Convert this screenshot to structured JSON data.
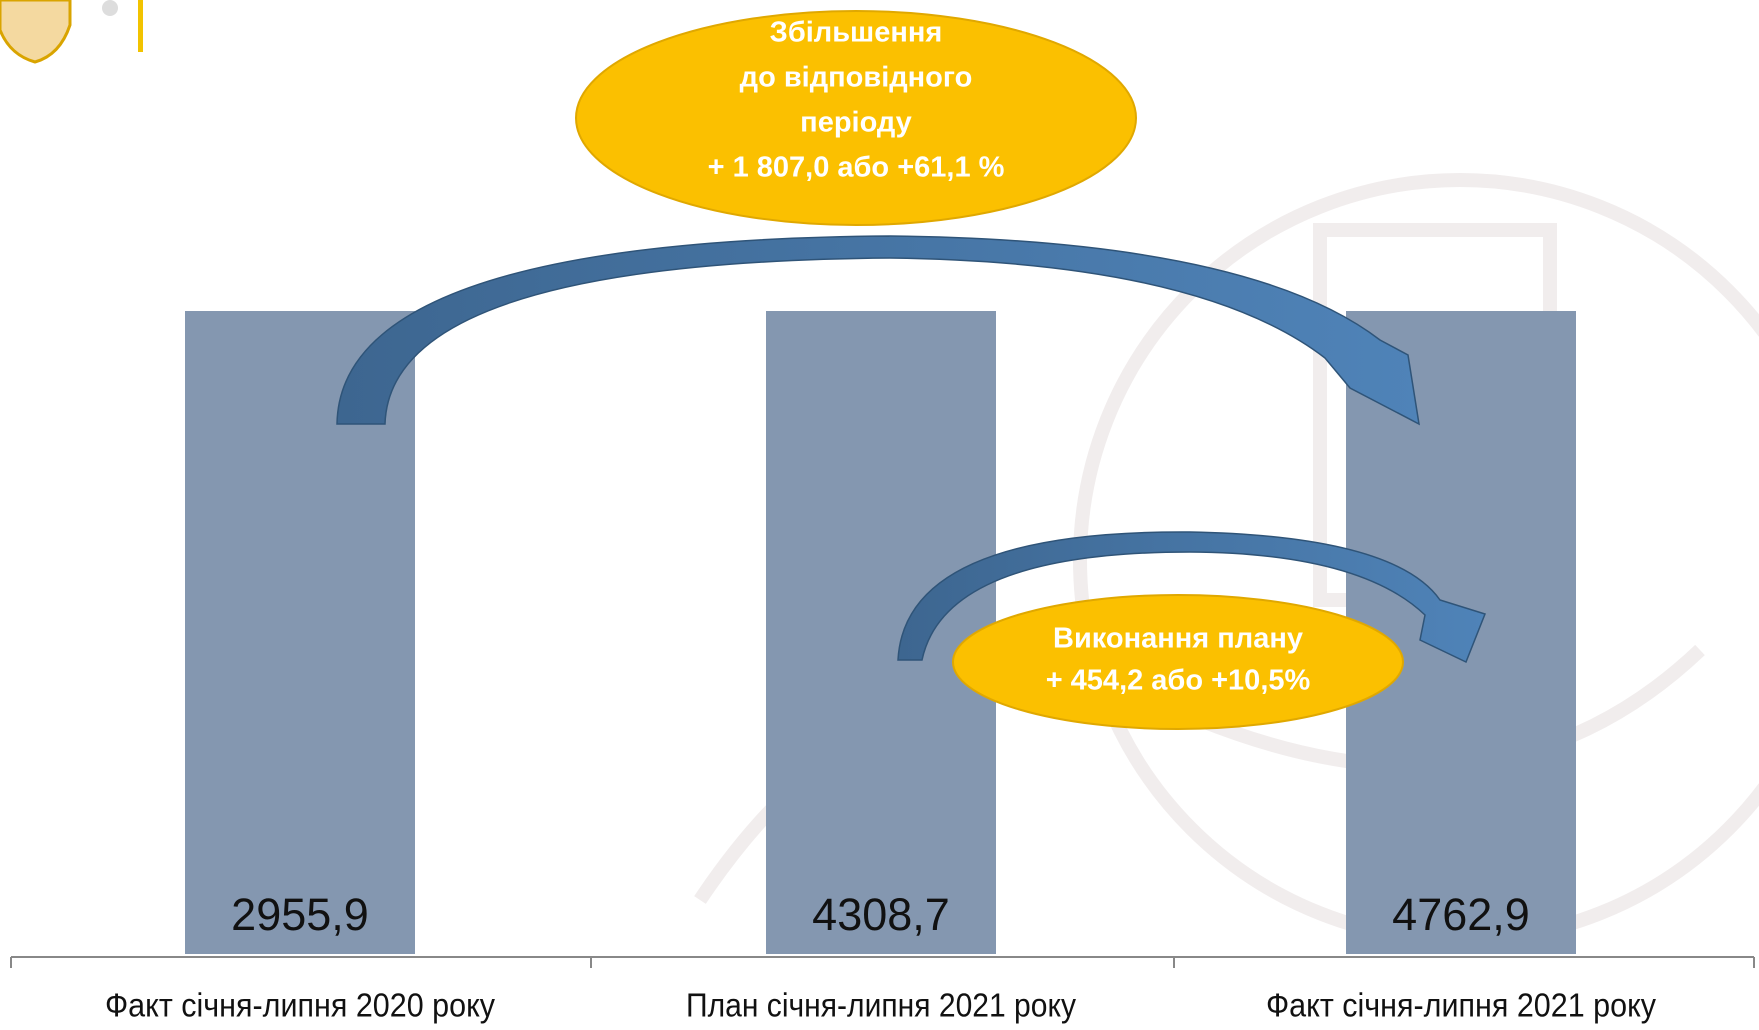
{
  "items": [
    {
      "label": "Факт січня-липня 2020 року",
      "value": "2955,9"
    },
    {
      "label": "План січня-липня 2021 року",
      "value": "4308,7"
    },
    {
      "label": "Факт січня-липня 2021 року",
      "value": "4762,9"
    }
  ],
  "callouts": [
    {
      "lines": [
        "Збільшення",
        "до відповідного",
        "періоду",
        "+ 1 807,0 або +61,1 %"
      ]
    },
    {
      "lines": [
        "Виконання плану",
        "+ 454,2 або +10,5%"
      ]
    }
  ]
}
